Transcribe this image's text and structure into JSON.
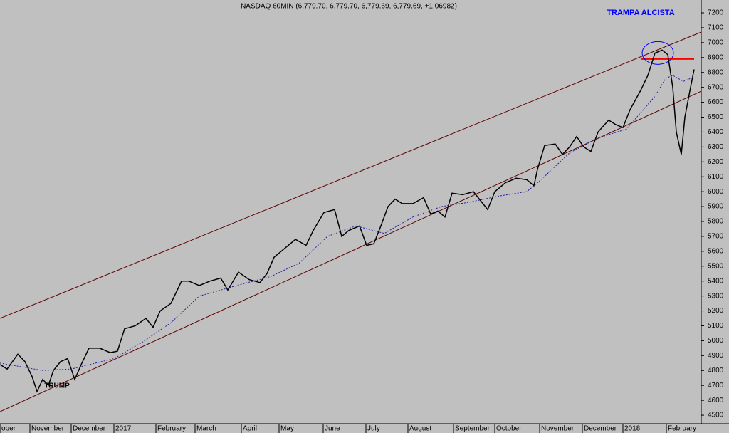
{
  "chart_data": {
    "type": "line",
    "title": "NASDAQ 60MIN (6,779.70, 6,779.70, 6,779.69, 6,779.69, +1.06982)",
    "annotations": [
      "TRAMPA ALCISTA",
      "TRUMP"
    ],
    "xlim": [
      0,
      985
    ],
    "ylim": [
      4443,
      7286
    ],
    "yticks": [
      4500,
      4600,
      4700,
      4800,
      4900,
      5000,
      5100,
      5200,
      5300,
      5400,
      5500,
      5600,
      5700,
      5800,
      5900,
      6000,
      6100,
      6200,
      6300,
      6400,
      6500,
      6600,
      6700,
      6800,
      6900,
      7000,
      7100,
      7200
    ],
    "xticks": [
      {
        "value": 0,
        "label": "ober"
      },
      {
        "value": 42,
        "label": "November"
      },
      {
        "value": 100,
        "label": "December"
      },
      {
        "value": 160,
        "label": "2017"
      },
      {
        "value": 219,
        "label": "February"
      },
      {
        "value": 274,
        "label": "March"
      },
      {
        "value": 339,
        "label": "April"
      },
      {
        "value": 392,
        "label": "May"
      },
      {
        "value": 454,
        "label": "June"
      },
      {
        "value": 514,
        "label": "July"
      },
      {
        "value": 573,
        "label": "August"
      },
      {
        "value": 637,
        "label": "September"
      },
      {
        "value": 695,
        "label": "October"
      },
      {
        "value": 758,
        "label": "November"
      },
      {
        "value": 818,
        "label": "December"
      },
      {
        "value": 875,
        "label": "2018"
      },
      {
        "value": 936,
        "label": "February"
      }
    ],
    "series": [
      {
        "name": "NASDAQ",
        "color": "#000000",
        "x": [
          0,
          10,
          25,
          35,
          45,
          52,
          60,
          68,
          75,
          85,
          95,
          105,
          115,
          125,
          140,
          155,
          165,
          175,
          190,
          205,
          215,
          225,
          240,
          255,
          265,
          280,
          295,
          310,
          320,
          335,
          350,
          365,
          375,
          385,
          400,
          415,
          430,
          440,
          455,
          470,
          480,
          490,
          505,
          515,
          525,
          535,
          545,
          555,
          565,
          580,
          595,
          605,
          615,
          625,
          635,
          650,
          665,
          685,
          695,
          710,
          725,
          740,
          750,
          755,
          765,
          780,
          790,
          800,
          810,
          820,
          830,
          840,
          855,
          865,
          875,
          885,
          900,
          910,
          920,
          930,
          938,
          945,
          950,
          957,
          962,
          970,
          975
        ],
        "values": [
          4840,
          4810,
          4910,
          4860,
          4760,
          4660,
          4740,
          4700,
          4800,
          4860,
          4880,
          4740,
          4850,
          4950,
          4950,
          4920,
          4930,
          5080,
          5100,
          5150,
          5090,
          5200,
          5250,
          5400,
          5400,
          5370,
          5400,
          5420,
          5340,
          5460,
          5410,
          5390,
          5450,
          5560,
          5620,
          5680,
          5640,
          5740,
          5860,
          5880,
          5700,
          5740,
          5770,
          5640,
          5650,
          5770,
          5900,
          5950,
          5920,
          5920,
          5960,
          5850,
          5870,
          5830,
          5990,
          5980,
          6000,
          5880,
          6000,
          6060,
          6090,
          6080,
          6040,
          6150,
          6310,
          6320,
          6250,
          6300,
          6370,
          6300,
          6270,
          6400,
          6480,
          6450,
          6430,
          6550,
          6680,
          6780,
          6930,
          6950,
          6920,
          6700,
          6400,
          6250,
          6500,
          6700,
          6820
        ]
      },
      {
        "name": "MA",
        "color": "#2020a0",
        "dashed": true,
        "x": [
          0,
          60,
          100,
          160,
          200,
          240,
          280,
          340,
          380,
          420,
          460,
          500,
          540,
          580,
          620,
          660,
          700,
          740,
          760,
          800,
          840,
          880,
          920,
          935,
          945,
          960,
          975
        ],
        "values": [
          4850,
          4800,
          4810,
          4880,
          4990,
          5120,
          5300,
          5380,
          5430,
          5520,
          5700,
          5770,
          5720,
          5830,
          5900,
          5930,
          5970,
          6000,
          6080,
          6260,
          6360,
          6420,
          6640,
          6760,
          6780,
          6740,
          6770
        ]
      }
    ],
    "trendlines": [
      {
        "color": "#600000",
        "x": [
          0,
          985
        ],
        "values": [
          5150,
          7071
        ]
      },
      {
        "color": "#600000",
        "x": [
          0,
          985
        ],
        "values": [
          4524,
          6674
        ]
      },
      {
        "color": "#ff0000",
        "x": [
          900,
          975
        ],
        "values": [
          6890,
          6890
        ]
      }
    ]
  }
}
